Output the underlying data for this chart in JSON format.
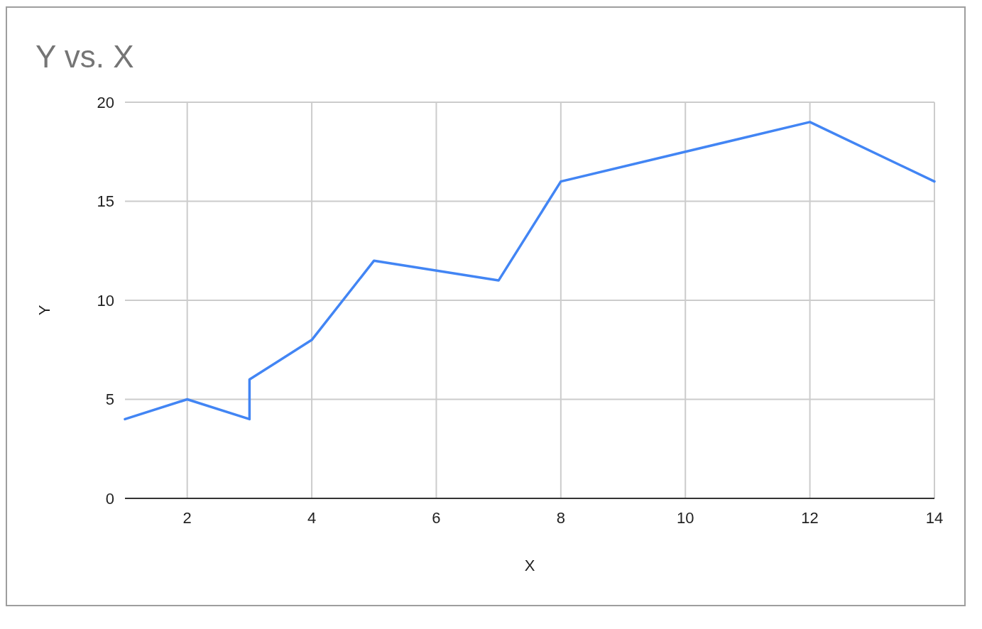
{
  "chart_data": {
    "type": "line",
    "title": "Y vs. X",
    "xlabel": "X",
    "ylabel": "Y",
    "x": [
      1,
      2,
      3,
      3,
      4,
      5,
      7,
      8,
      12,
      14
    ],
    "series": [
      {
        "color": "#4285f4",
        "values": [
          4,
          5,
          4,
          6,
          8,
          12,
          11,
          16,
          19,
          16
        ]
      }
    ],
    "xlim": [
      1,
      14
    ],
    "ylim": [
      0,
      20
    ],
    "xticks": [
      2,
      4,
      6,
      8,
      10,
      12,
      14
    ],
    "yticks": [
      0,
      5,
      10,
      15,
      20
    ],
    "grid": true
  }
}
